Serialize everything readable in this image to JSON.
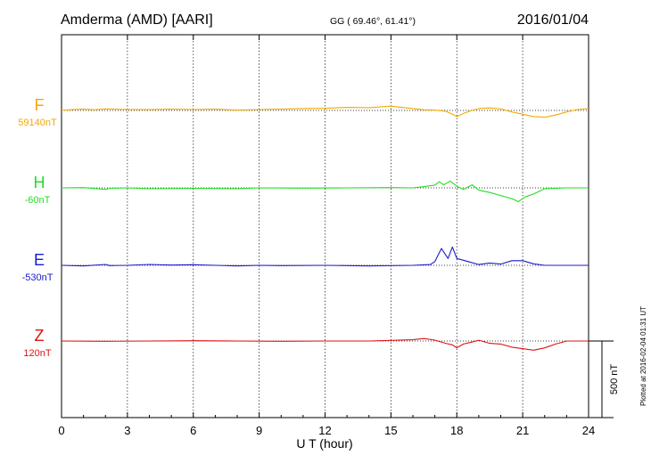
{
  "header": {
    "station": "Amderma (AMD)  [AARI]",
    "coords": "GG ( 69.46°,  61.41°)",
    "date": "2016/01/04"
  },
  "footer": {
    "plotted_note": "Plotted at 2016-02-04 01:31 UT"
  },
  "chart_data": {
    "type": "line",
    "title": "Amderma (AMD)  [AARI]",
    "xlabel": "U T (hour)",
    "ylabel": "",
    "xlim": [
      0,
      24
    ],
    "xticks": [
      0,
      3,
      6,
      9,
      12,
      15,
      18,
      21,
      24
    ],
    "grid": "vertical dotted",
    "scale_bar": {
      "label": "500 nT",
      "value_nT": 500
    },
    "series": [
      {
        "name": "F",
        "baseline": "59140nT",
        "color": "#f5a800",
        "x": [
          0,
          0.5,
          1,
          1.5,
          2,
          3,
          4,
          5,
          6,
          7,
          8,
          9,
          10,
          11,
          12,
          13,
          14,
          15,
          16,
          16.5,
          17,
          17.5,
          17.8,
          18,
          18.3,
          18.7,
          19,
          19.5,
          20,
          20.5,
          21,
          21.5,
          22,
          22.5,
          23,
          23.5,
          24
        ],
        "y": [
          0,
          5,
          8,
          4,
          10,
          6,
          5,
          8,
          6,
          8,
          2,
          6,
          8,
          12,
          14,
          20,
          18,
          28,
          12,
          4,
          2,
          -6,
          -25,
          -40,
          -20,
          0,
          12,
          16,
          10,
          -10,
          -25,
          -40,
          -45,
          -30,
          -10,
          6,
          12
        ]
      },
      {
        "name": "H",
        "baseline": "-60nT",
        "color": "#22dd22",
        "x": [
          0,
          1,
          2,
          2.2,
          3,
          4,
          6,
          8,
          9,
          11,
          13,
          15,
          16,
          16.5,
          17,
          17.2,
          17.4,
          17.7,
          18,
          18.3,
          18.7,
          19,
          19.5,
          20,
          20.5,
          20.8,
          21.1,
          21.5,
          22,
          23,
          24
        ],
        "y": [
          0,
          2,
          -10,
          -3,
          0,
          -5,
          -3,
          -5,
          0,
          -2,
          0,
          2,
          0,
          8,
          18,
          40,
          20,
          45,
          10,
          -10,
          20,
          -15,
          -30,
          -50,
          -70,
          -90,
          -60,
          -40,
          -5,
          0,
          0
        ]
      },
      {
        "name": "E",
        "baseline": "-530nT",
        "color": "#1a1acc",
        "x": [
          0,
          1,
          2,
          2.2,
          3,
          4,
          5,
          6,
          7,
          8,
          9,
          10,
          12,
          14,
          16,
          16.8,
          17,
          17.3,
          17.6,
          17.8,
          18,
          18.5,
          19,
          19.5,
          20,
          20.5,
          21,
          21.5,
          22,
          23,
          24
        ],
        "y": [
          0,
          -4,
          6,
          -2,
          0,
          6,
          2,
          4,
          0,
          -4,
          0,
          -2,
          0,
          -4,
          0,
          5,
          25,
          110,
          45,
          120,
          45,
          25,
          5,
          15,
          8,
          30,
          30,
          10,
          0,
          0,
          0
        ]
      },
      {
        "name": "Z",
        "baseline": "120nT",
        "color": "#dd1111",
        "x": [
          0,
          2,
          4,
          6,
          8,
          10,
          12,
          14,
          16,
          16.5,
          17,
          17.5,
          17.8,
          18,
          18.3,
          18.6,
          19,
          19.5,
          20,
          20.5,
          21,
          21.5,
          22,
          22.5,
          23,
          24
        ],
        "y": [
          0,
          -2,
          0,
          2,
          0,
          -2,
          0,
          0,
          8,
          16,
          6,
          -15,
          -25,
          -45,
          -20,
          -10,
          5,
          -15,
          -20,
          -40,
          -50,
          -60,
          -45,
          -20,
          0,
          0
        ]
      }
    ]
  }
}
